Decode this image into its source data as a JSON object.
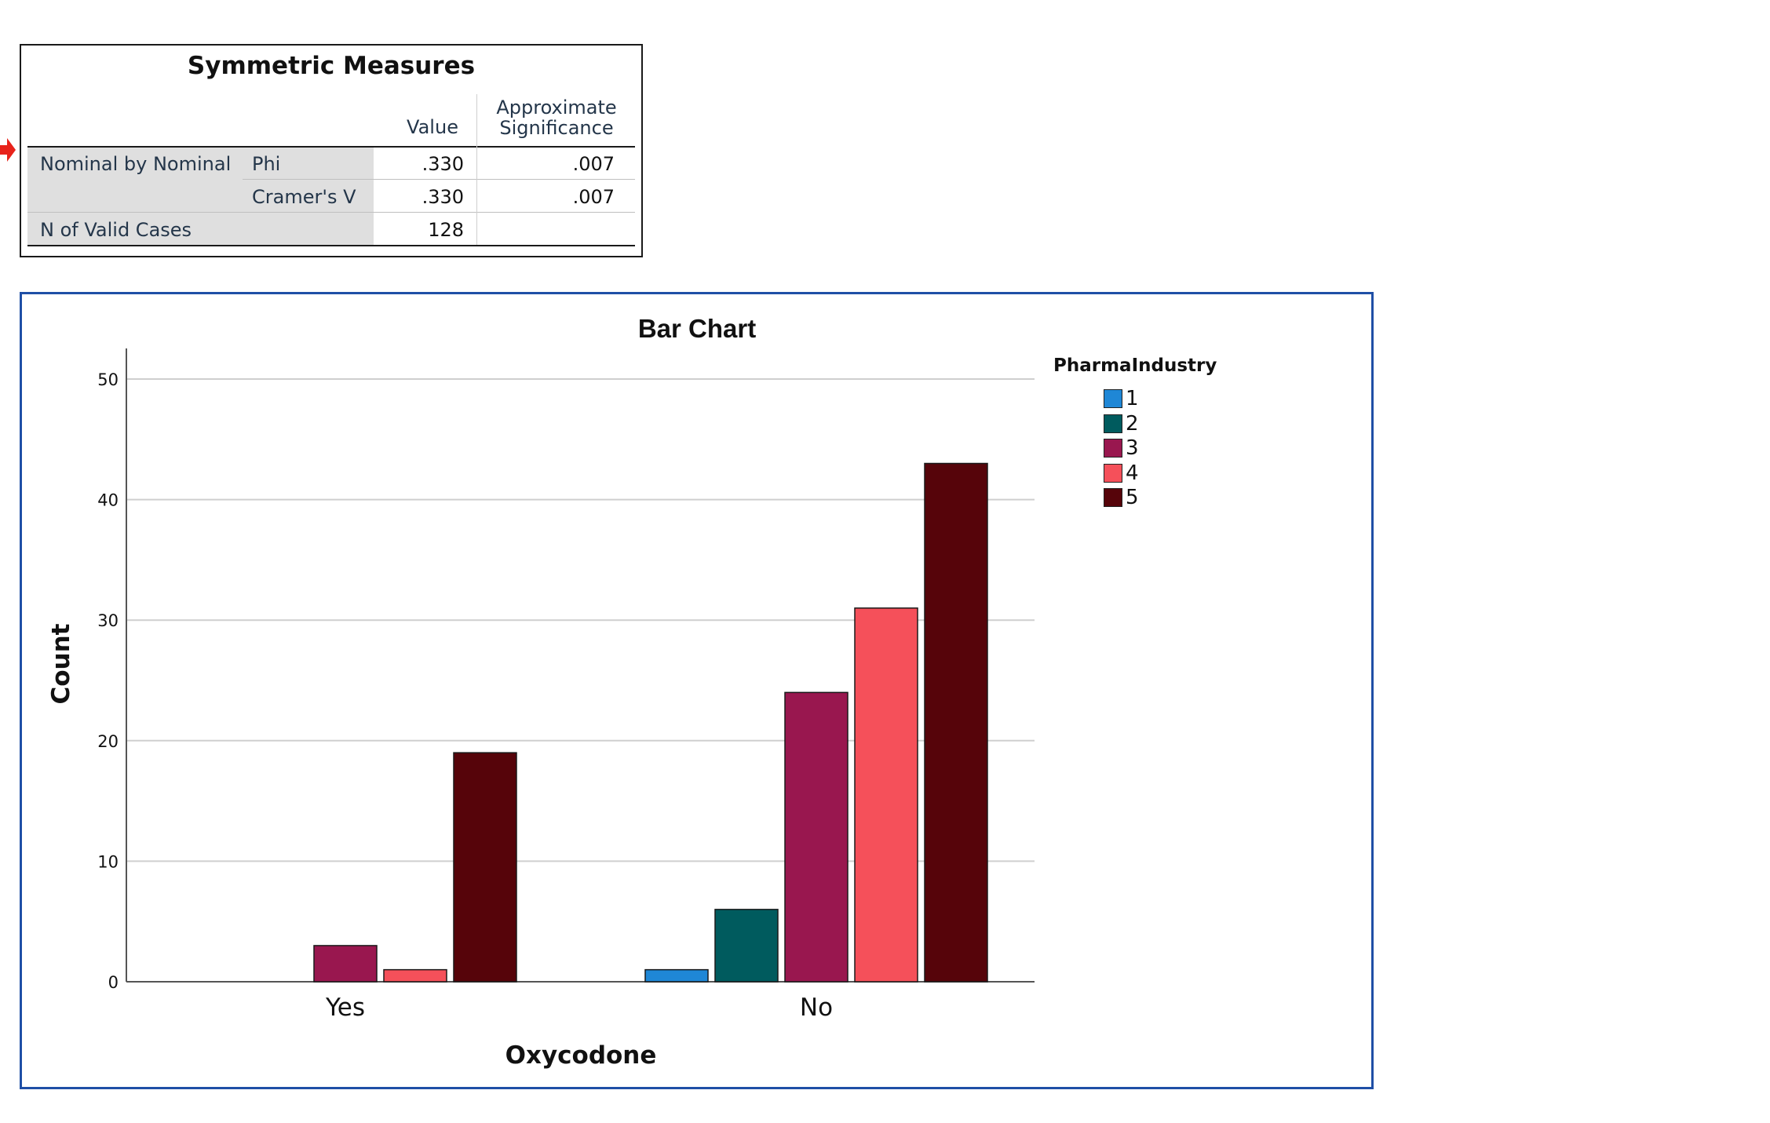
{
  "table": {
    "title": "Symmetric Measures",
    "col_value": "Value",
    "col_sig_line1": "Approximate",
    "col_sig_line2": "Significance",
    "group_label": "Nominal by Nominal",
    "rows": [
      {
        "label": "Phi",
        "value": ".330",
        "sig": ".007"
      },
      {
        "label": "Cramer's V",
        "value": ".330",
        "sig": ".007"
      }
    ],
    "n_label": "N of Valid Cases",
    "n_value": "128"
  },
  "chart_data": {
    "type": "bar",
    "title": "Bar Chart",
    "xlabel": "Oxycodone",
    "ylabel": "Count",
    "categories": [
      "Yes",
      "No"
    ],
    "ylim": [
      0,
      52
    ],
    "yticks": [
      0,
      10,
      20,
      30,
      40,
      50
    ],
    "grid": true,
    "legend_title": "PharmaIndustry",
    "legend_position": "top-right",
    "series": [
      {
        "name": "1",
        "color": "#1f87d6",
        "values": [
          0,
          1
        ]
      },
      {
        "name": "2",
        "color": "#005b5e",
        "values": [
          0,
          6
        ]
      },
      {
        "name": "3",
        "color": "#99174f",
        "values": [
          3,
          24
        ]
      },
      {
        "name": "4",
        "color": "#f5505a",
        "values": [
          1,
          31
        ]
      },
      {
        "name": "5",
        "color": "#56040a",
        "values": [
          19,
          43
        ]
      }
    ]
  }
}
